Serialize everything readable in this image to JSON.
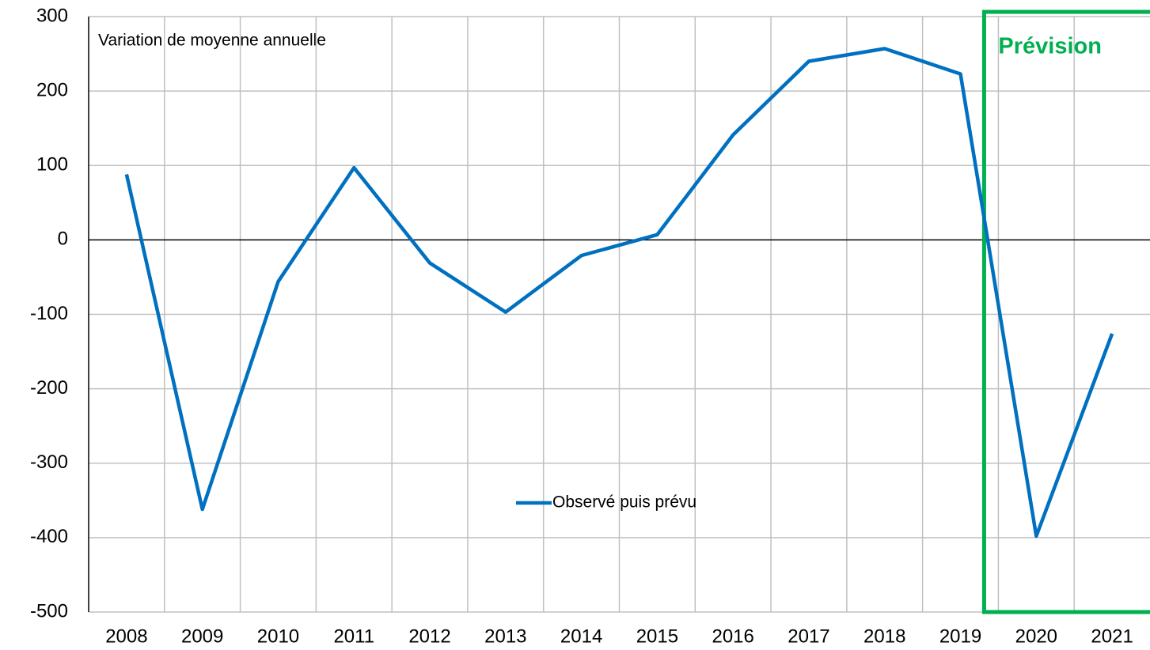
{
  "chart_data": {
    "type": "line",
    "subtitle": "Variation de moyenne annuelle",
    "annotation": "Prévision",
    "categories": [
      "2008",
      "2009",
      "2010",
      "2011",
      "2012",
      "2013",
      "2014",
      "2015",
      "2016",
      "2017",
      "2018",
      "2019",
      "2020",
      "2021"
    ],
    "series": [
      {
        "name": "Observé puis prévu",
        "color": "#0070c0",
        "values": [
          88,
          -362,
          -56,
          97,
          -31,
          -97,
          -21,
          7,
          141,
          240,
          257,
          223,
          -398,
          -126
        ]
      }
    ],
    "ylim": [
      -500,
      300
    ],
    "yticks": [
      -500,
      -400,
      -300,
      -200,
      -100,
      0,
      100,
      200,
      300
    ],
    "grid": true
  }
}
